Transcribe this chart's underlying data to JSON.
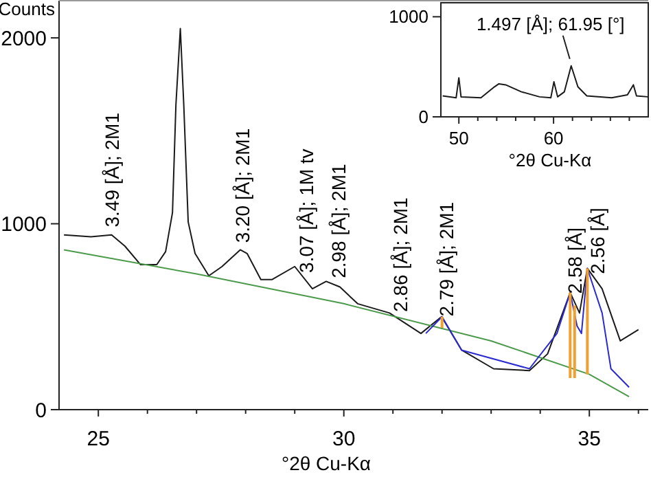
{
  "chart_data": [
    {
      "type": "line",
      "xlabel": "°2θ Cu-Kα",
      "ylabel": "Counts",
      "xlim": [
        24.2,
        36.2
      ],
      "ylim": [
        0,
        2200
      ],
      "xticks": [
        25,
        {
          "value": 26,
          "label": null
        },
        {
          "value": 27,
          "label": null
        },
        {
          "value": 28,
          "label": null
        },
        {
          "value": 29,
          "label": null
        },
        30,
        {
          "value": 31,
          "label": null
        },
        {
          "value": 32,
          "label": null
        },
        {
          "value": 33,
          "label": null
        },
        {
          "value": 34,
          "label": null
        },
        35,
        {
          "value": 36,
          "label": null
        }
      ],
      "yticks": [
        0,
        1000,
        2000
      ],
      "series": [
        {
          "color": "#1a1a1a",
          "x": [
            24.3,
            24.85,
            25.27,
            25.54,
            25.86,
            26.19,
            26.37,
            26.51,
            26.58,
            26.67,
            26.74,
            26.83,
            26.97,
            27.25,
            27.52,
            27.89,
            28.03,
            28.31,
            28.54,
            29.0,
            29.36,
            29.64,
            29.92,
            30.28,
            30.93,
            31.57,
            31.99,
            32.4,
            33.05,
            33.78,
            34.15,
            34.61,
            34.8,
            34.96,
            35.26,
            35.63,
            36.0
          ],
          "values": [
            940,
            930,
            940,
            880,
            780,
            780,
            850,
            1060,
            1640,
            2050,
            1640,
            1010,
            840,
            720,
            770,
            860,
            840,
            700,
            700,
            770,
            650,
            690,
            660,
            570,
            520,
            410,
            500,
            320,
            220,
            210,
            300,
            630,
            520,
            760,
            650,
            370,
            430
          ]
        },
        {
          "color": "#4c9a4c",
          "x": [
            24.3,
            27,
            30,
            33,
            35,
            35.81
          ],
          "values": [
            860,
            730,
            570,
            370,
            190,
            70
          ]
        },
        {
          "color": "#2a2ad0",
          "x": [
            31.67,
            32.0,
            32.4,
            33.78,
            34.34,
            34.61,
            34.75,
            34.84,
            34.96,
            35.26,
            35.44,
            35.81
          ],
          "values": [
            410,
            500,
            320,
            220,
            410,
            630,
            450,
            410,
            760,
            520,
            220,
            120
          ]
        },
        {
          "type": "bar",
          "color": "#f0a030",
          "x": [
            32.0,
            34.61,
            34.7,
            34.96
          ],
          "base": [
            440,
            170,
            170,
            190
          ],
          "values": [
            60,
            460,
            390,
            570
          ]
        }
      ],
      "annotations": [
        "3.49 [Å]; 2M1",
        "3.20 [Å]; 2M1",
        "3.07 [Å]; 1M tv",
        "2.98 [Å]; 2M1",
        "2.86 [Å]; 2M1",
        "2.79 [Å]; 2M1",
        "2.58 [Å]",
        "2.56 [Å]"
      ]
    },
    {
      "type": "line",
      "xlabel": "°2θ Cu-Kα",
      "xlim": [
        48.1,
        70
      ],
      "ylim": [
        0,
        1140
      ],
      "xticks": [
        50,
        {
          "value": 52,
          "label": null
        },
        {
          "value": 54,
          "label": null
        },
        {
          "value": 56,
          "label": null
        },
        {
          "value": 58,
          "label": null
        },
        60,
        {
          "value": 62,
          "label": null
        },
        {
          "value": 64,
          "label": null
        },
        {
          "value": 66,
          "label": null
        },
        {
          "value": 68,
          "label": null
        }
      ],
      "yticks": [
        0,
        1000
      ],
      "series": [
        {
          "color": "#1a1a1a",
          "x": [
            48.29,
            49.71,
            50.0,
            50.23,
            52.33,
            53.76,
            54.23,
            54.94,
            56.61,
            58.51,
            59.71,
            60.04,
            60.43,
            61.14,
            61.86,
            62.57,
            63.51,
            66.14,
            67.8,
            68.43,
            68.76,
            69.94
          ],
          "values": [
            210,
            190,
            390,
            200,
            190,
            300,
            330,
            320,
            250,
            200,
            190,
            350,
            200,
            250,
            510,
            300,
            210,
            190,
            220,
            320,
            210,
            200
          ]
        }
      ],
      "annotations": [
        {
          "text": "1.497 [Å]; 61.95 [°]",
          "x": 61.86,
          "y": 510
        }
      ]
    }
  ]
}
